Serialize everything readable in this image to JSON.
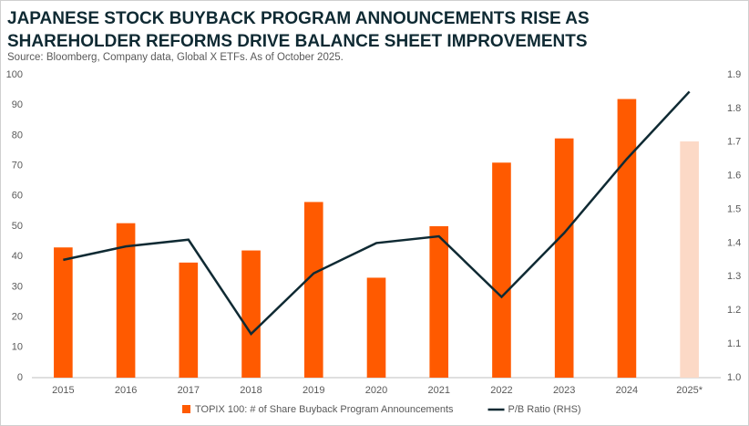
{
  "chart_data": {
    "type": "bar_line",
    "title": [
      "JAPANESE STOCK BUYBACK PROGRAM ANNOUNCEMENTS RISE AS",
      "SHAREHOLDER REFORMS DRIVE BALANCE SHEET IMPROVEMENTS"
    ],
    "subtitle": "Source: Bloomberg, Company data, Global X ETFs. As of October 2025.",
    "categories": [
      "2015",
      "2016",
      "2017",
      "2018",
      "2019",
      "2020",
      "2021",
      "2022",
      "2023",
      "2024",
      "2025*"
    ],
    "series": [
      {
        "name": "TOPIX 100: # of Share Buyback Program Announcements",
        "type": "bar",
        "color": "#ff5a00",
        "colors": [
          "#ff5a00",
          "#ff5a00",
          "#ff5a00",
          "#ff5a00",
          "#ff5a00",
          "#ff5a00",
          "#ff5a00",
          "#ff5a00",
          "#ff5a00",
          "#ff5a00",
          "#fcd9c6"
        ],
        "values": [
          43,
          51,
          38,
          42,
          58,
          33,
          50,
          71,
          79,
          92,
          78
        ]
      },
      {
        "name": "P/B Ratio (RHS)",
        "type": "line",
        "color": "#0f2a33",
        "axis": "y2",
        "values": [
          1.35,
          1.39,
          1.41,
          1.13,
          1.31,
          1.4,
          1.42,
          1.24,
          1.43,
          1.65,
          1.85
        ]
      }
    ],
    "ylim": [
      0,
      100
    ],
    "yticks": [
      0,
      10,
      20,
      30,
      40,
      50,
      60,
      70,
      80,
      90,
      100
    ],
    "y2lim": [
      1.0,
      1.9
    ],
    "y2ticks": [
      {
        "value": 1,
        "label": "1.0"
      },
      1.1,
      1.2,
      1.3,
      1.4,
      1.5,
      1.6,
      1.7,
      1.8,
      1.9
    ],
    "grid": false
  }
}
